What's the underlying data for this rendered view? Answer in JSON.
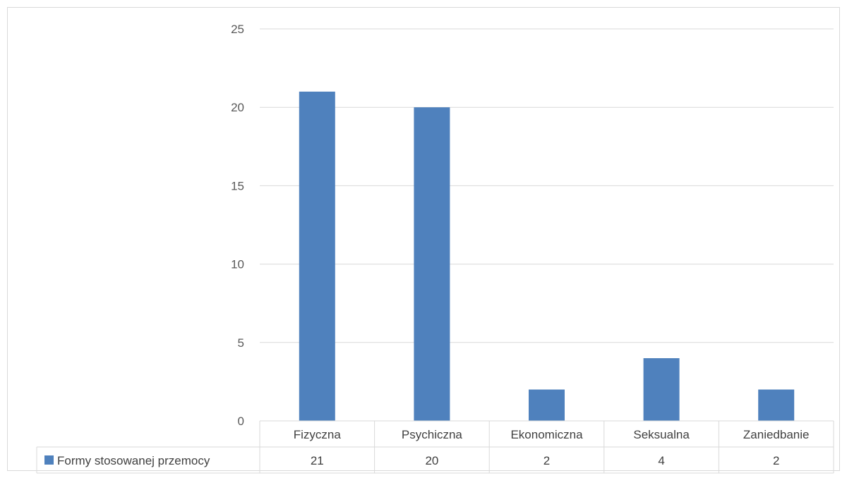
{
  "chart_data": {
    "type": "bar",
    "categories": [
      "Fizyczna",
      "Psychiczna",
      "Ekonomiczna",
      "Seksualna",
      "Zaniedbanie"
    ],
    "series": [
      {
        "name": "Formy stosowanej przemocy",
        "values": [
          21,
          20,
          2,
          4,
          2
        ],
        "color": "#4f81bd"
      }
    ],
    "ylim": [
      0,
      25
    ],
    "yticks": [
      0,
      5,
      10,
      15,
      20,
      25
    ],
    "grid": true,
    "data_table": true,
    "gridline_color": "#d9d9d9"
  }
}
